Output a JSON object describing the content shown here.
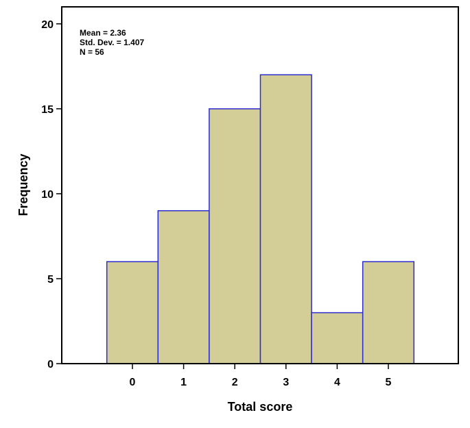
{
  "chart_data": {
    "type": "bar",
    "categories": [
      "0",
      "1",
      "2",
      "3",
      "4",
      "5"
    ],
    "values": [
      6,
      9,
      15,
      17,
      3,
      6
    ],
    "xlabel": "Total score",
    "ylabel": "Frequency",
    "ylim": [
      0,
      21
    ],
    "yticks": [
      "0",
      "5",
      "10",
      "15",
      "20"
    ],
    "stats": [
      "Mean = 2.36",
      "Std. Dev. = 1.407",
      "N = 56"
    ],
    "grid": false,
    "bar_color": "#d3cd98",
    "bar_edge_color": "#2b2bd0"
  }
}
